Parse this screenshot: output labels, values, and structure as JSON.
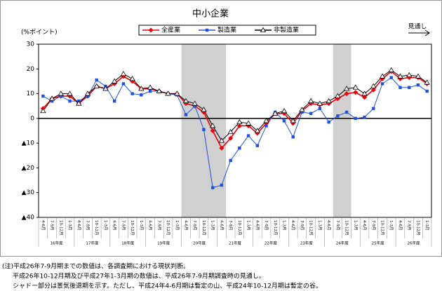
{
  "chart_data": {
    "type": "line",
    "title": "中小企業",
    "y_label": "(%ポイント)",
    "forecast_label": "見通し",
    "categories": [
      "4-6月",
      "7-9月",
      "10-12月",
      "1-3月",
      "4-6月",
      "7-9月",
      "10-12月",
      "1-3月",
      "4-6月",
      "7-9月",
      "10-12月",
      "1-3月",
      "4-6月",
      "7-9月",
      "10-12月",
      "1-3月",
      "4-6月",
      "7-9月",
      "10-12月",
      "1-3月",
      "4-6月",
      "7-9月",
      "10-12月",
      "1-3月",
      "4-6月",
      "7-9月",
      "10-12月",
      "1-3月",
      "4-6月",
      "7-9月",
      "10-12月",
      "1-3月",
      "4-6月",
      "7-9月",
      "10-12月",
      "1-3月",
      "4-6月",
      "7-9月",
      "10-12月",
      "1-3月",
      "4-6月",
      "7-9月",
      "10-12月",
      "1-3月"
    ],
    "year_labels": [
      "16年度",
      "17年度",
      "18年度",
      "19年度",
      "20年度",
      "21年度",
      "22年度",
      "23年度",
      "24年度",
      "25年度",
      "26年度"
    ],
    "ylim": [
      -40,
      30
    ],
    "yticks": [
      {
        "value": -40,
        "label": "▲40"
      },
      {
        "value": -30,
        "label": "▲30"
      },
      {
        "value": -20,
        "label": "▲20"
      },
      {
        "value": -10,
        "label": "▲10"
      },
      0,
      10,
      20,
      30
    ],
    "series": [
      {
        "name": "全産業",
        "color": "#e8000b",
        "marker": "diamond",
        "values": [
          4,
          8,
          9,
          9,
          6,
          9,
          13,
          12,
          14,
          17,
          15,
          12,
          12,
          11,
          10,
          10,
          6,
          5,
          2.5,
          -5,
          -12,
          -8,
          -3,
          -3,
          -6,
          -2,
          2,
          2,
          -2,
          3,
          6,
          5.5,
          6,
          8,
          10,
          10.5,
          8.5,
          11.5,
          16,
          19,
          16,
          16.5,
          16.5,
          14
        ]
      },
      {
        "name": "製造業",
        "color": "#1f50e0",
        "marker": "square",
        "values": [
          9,
          7,
          9,
          7,
          7,
          9,
          15.5,
          13,
          7,
          14,
          10,
          9.5,
          11,
          11,
          10,
          9.5,
          1.5,
          5,
          -4.5,
          -28,
          -27,
          -17,
          -12,
          -7,
          -11,
          -3,
          2.5,
          -1,
          -7.5,
          2.5,
          2,
          4,
          -1.5,
          1,
          2.5,
          0,
          0.5,
          4,
          14,
          16.5,
          12.5,
          12.5,
          13.5,
          11
        ]
      },
      {
        "name": "非製造業",
        "color": "#000000",
        "marker": "triangle",
        "values": [
          3,
          8,
          10,
          10,
          6,
          10,
          13,
          12,
          15,
          18,
          16,
          12,
          12.5,
          11,
          10,
          10,
          7,
          6,
          3.5,
          -3,
          -9,
          -5.5,
          -1.5,
          -2,
          -5,
          -1,
          2,
          3,
          -1,
          3.5,
          7,
          6,
          7,
          9,
          12,
          12.5,
          10,
          13,
          17,
          19.5,
          17,
          17.5,
          17,
          14.5
        ]
      }
    ],
    "notes": [
      "(注)平成26年7-9月期までの数値は、各調査期における現状判断。",
      "平成26年10-12月期及び平成27年1-3月期の数値は、平成26年7-9月期調査時の見通し。",
      "シャドー部分は景気後退期を示す。ただし、平成24年4-6月期は暫定の山、平成24年10-12月期は暫定の谷。"
    ]
  }
}
